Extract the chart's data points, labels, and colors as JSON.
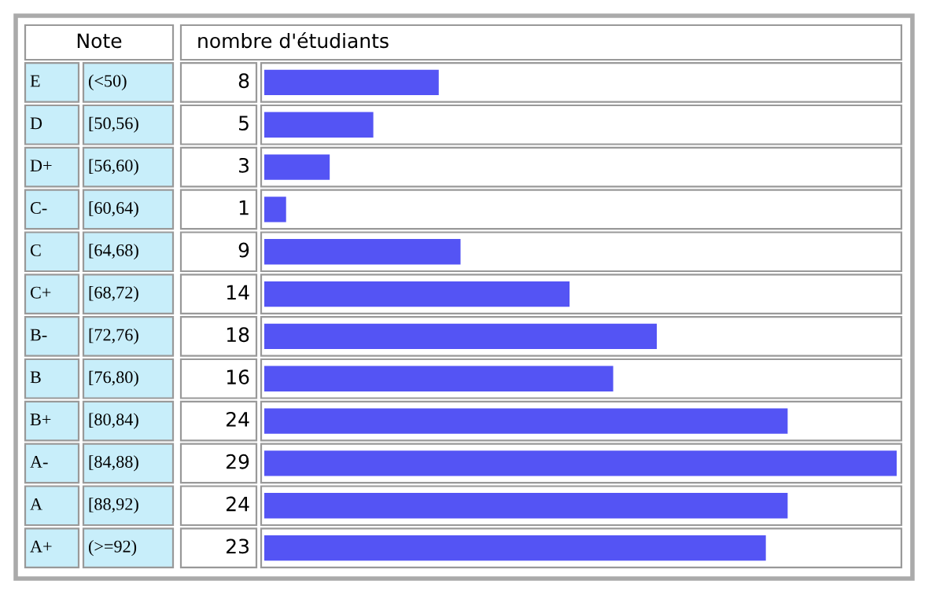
{
  "chart_data": {
    "type": "bar",
    "orientation": "horizontal",
    "ylabel": "Note",
    "xlabel": "nombre d'étudiants",
    "categories": [
      "E",
      "D",
      "D+",
      "C-",
      "C",
      "C+",
      "B-",
      "B",
      "B+",
      "A-",
      "A",
      "A+"
    ],
    "annotations": [
      "(<50)",
      "[50,56)",
      "[56,60)",
      "[60,64)",
      "[64,68)",
      "[68,72)",
      "[72,76)",
      "[76,80)",
      "[80,84)",
      "[84,88)",
      "[88,92)",
      "(>=92)"
    ],
    "values": [
      8,
      5,
      3,
      1,
      9,
      14,
      18,
      16,
      24,
      29,
      24,
      23
    ],
    "color": "#5454f4",
    "data_labels": true,
    "legend": false
  }
}
